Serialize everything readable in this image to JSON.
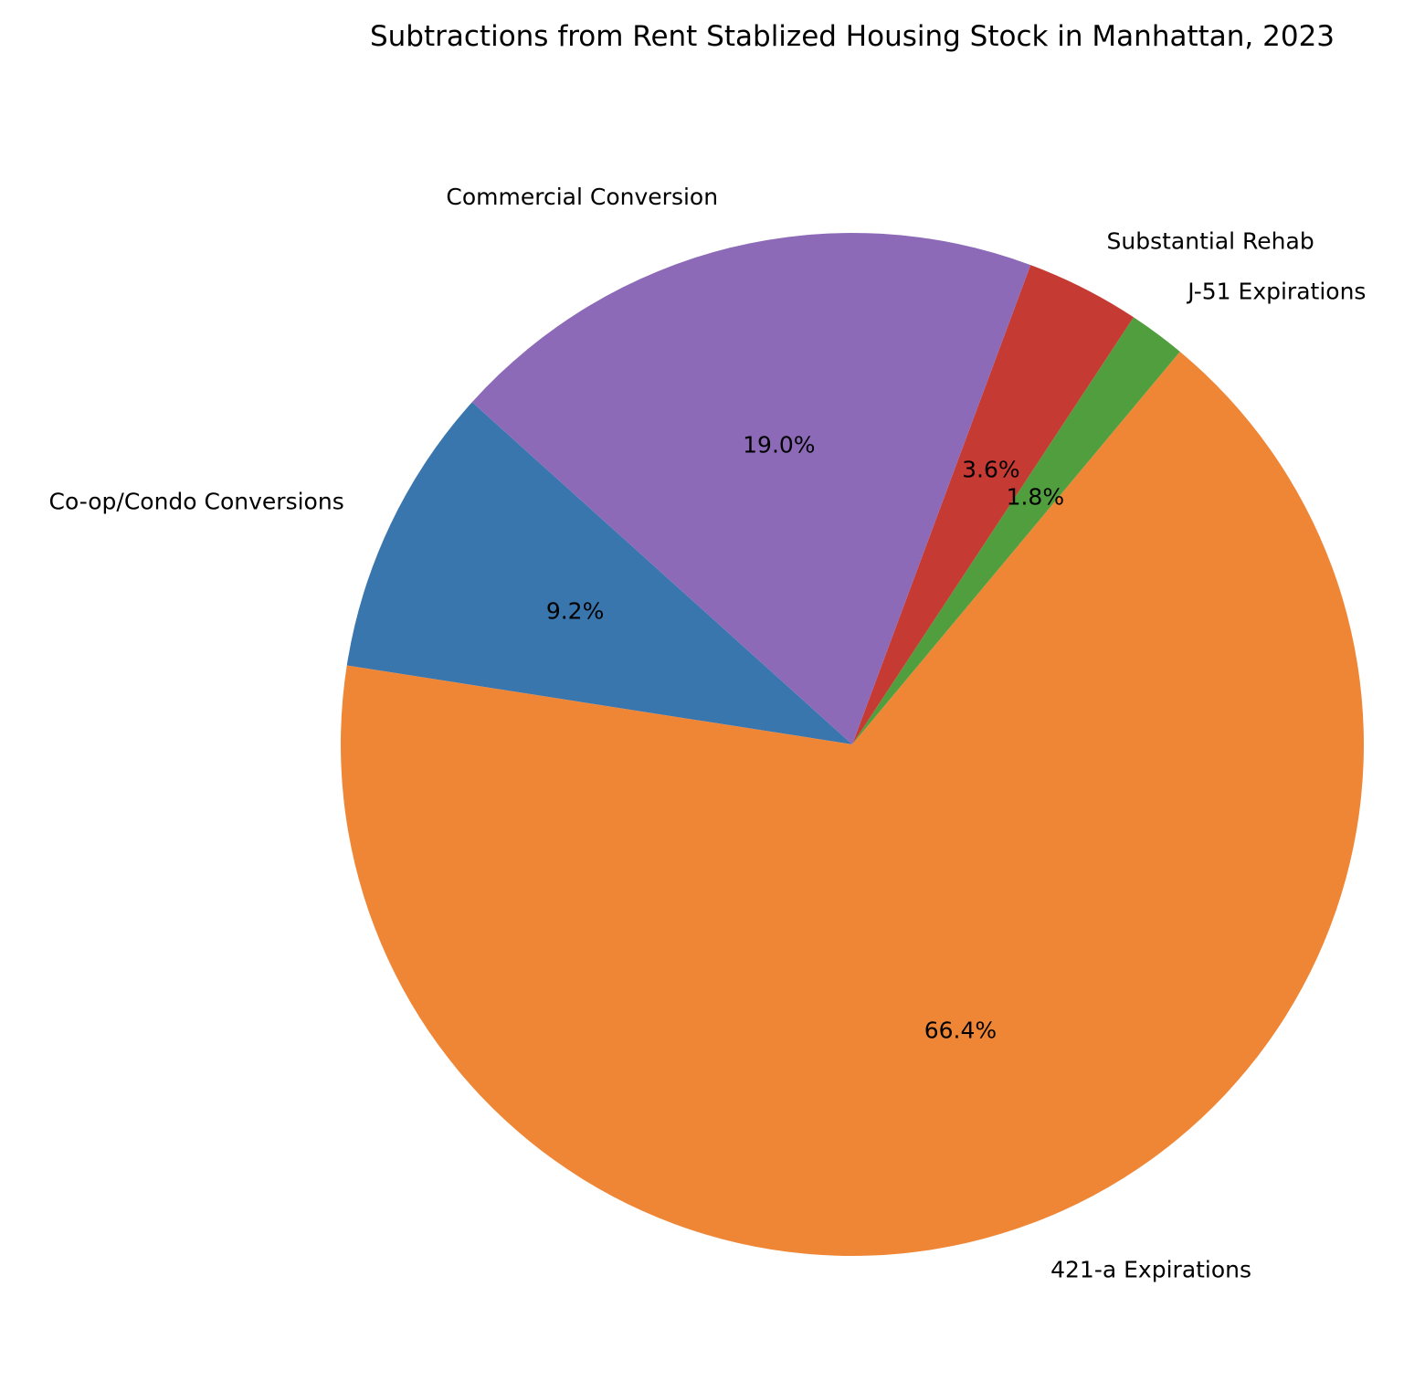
{
  "chart_data": {
    "type": "pie",
    "title": "Subtractions from Rent Stablized Housing Stock in Manhattan, 2023",
    "slices": [
      {
        "label": "Co-op/Condo Conversions",
        "percent": 9.2,
        "percent_label": "9.2%",
        "color": "#3a76ae"
      },
      {
        "label": "421-a Expirations",
        "percent": 66.4,
        "percent_label": "66.4%",
        "color": "#ef8636"
      },
      {
        "label": "J-51 Expirations",
        "percent": 1.8,
        "percent_label": "1.8%",
        "color": "#519e3e"
      },
      {
        "label": "Substantial Rehab",
        "percent": 3.6,
        "percent_label": "3.6%",
        "color": "#c53a32"
      },
      {
        "label": "Commercial Conversion",
        "percent": 19.0,
        "percent_label": "19.0%",
        "color": "#8d6ab8"
      }
    ],
    "start_angle_deg": 138,
    "direction": "counterclockwise"
  }
}
